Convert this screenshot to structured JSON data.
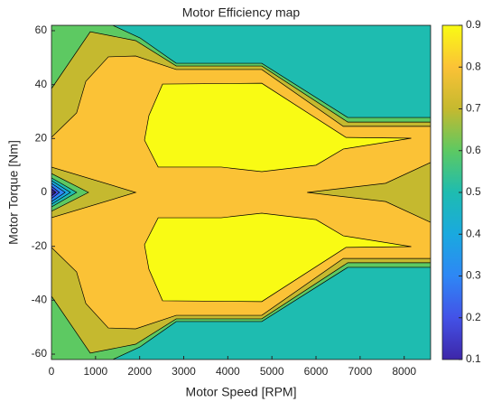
{
  "chart_data": {
    "type": "contourf",
    "title": "Motor Efficiency map",
    "xlabel": "Motor Speed [RPM]",
    "ylabel": "Motor Torque [Nm]",
    "xlim": [
      0,
      8600
    ],
    "ylim": [
      -62,
      62
    ],
    "xticks": [
      0,
      1000,
      2000,
      3000,
      4000,
      5000,
      6000,
      7000,
      8000
    ],
    "yticks": [
      -60,
      -40,
      -20,
      0,
      20,
      40,
      60
    ],
    "levels": [
      0.1,
      0.2,
      0.3,
      0.4,
      0.5,
      0.6,
      0.7,
      0.8,
      0.9
    ],
    "colors": [
      "#3d26a8",
      "#4352e7",
      "#2e87f5",
      "#1aa9df",
      "#1ebcb0",
      "#5dc962",
      "#c5b92f",
      "#fbc236",
      "#f9fb14"
    ],
    "clim": [
      0.1,
      0.9
    ],
    "colorbar_ticks": [
      0.1,
      0.2,
      0.3,
      0.4,
      0.5,
      0.6,
      0.7,
      0.8,
      0.9
    ],
    "regions": [
      {
        "level": 0.5,
        "x": [
          0,
          8600,
          8600,
          0
        ],
        "y": [
          62,
          62,
          -62,
          -62
        ]
      },
      {
        "level": 0.6,
        "x": [
          0,
          1390,
          2010,
          2830,
          4770,
          6720,
          8600,
          8600,
          6720,
          4770,
          2830,
          2010,
          1390,
          0
        ],
        "y": [
          62,
          62,
          57.3,
          47.9,
          47.9,
          27.8,
          27.8,
          -27.8,
          -27.8,
          -47.9,
          -47.9,
          -57.3,
          -62,
          -62
        ]
      },
      {
        "level": 0.7,
        "x": [
          0,
          880,
          1910,
          2830,
          4770,
          6720,
          8600,
          8600,
          6720,
          4770,
          2830,
          1910,
          880,
          0
        ],
        "y": [
          38.5,
          59.6,
          56.3,
          46.9,
          46.9,
          26.1,
          26.1,
          -26.1,
          -26.1,
          -46.9,
          -46.9,
          -56.3,
          -59.6,
          -38.5
        ]
      },
      {
        "level": 0.8,
        "x": [
          0,
          570,
          780,
          1290,
          1910,
          2830,
          4770,
          6620,
          8600,
          8600,
          6620,
          4770,
          2830,
          1910,
          1290,
          780,
          570,
          0
        ],
        "y": [
          20.4,
          29.5,
          41.2,
          50.3,
          50.6,
          45.6,
          45.6,
          24.5,
          24.5,
          -24.5,
          -24.5,
          -45.6,
          -45.6,
          -50.6,
          -50.3,
          -41.2,
          -29.5,
          -20.4
        ]
      },
      {
        "level": 0.9,
        "x": [
          2520,
          4770,
          6680,
          8160,
          6620,
          6000,
          4770,
          3850,
          2420,
          2110,
          2210
        ],
        "y": [
          40.2,
          40.5,
          20.4,
          20.1,
          16.1,
          10.1,
          7.7,
          9.4,
          9.4,
          19.4,
          28.5
        ]
      },
      {
        "level": 0.9,
        "x": [
          2520,
          4770,
          6680,
          8160,
          6620,
          6000,
          4770,
          3850,
          2420,
          2110,
          2210
        ],
        "y": [
          -40.2,
          -40.5,
          -20.4,
          -20.1,
          -16.1,
          -10.1,
          -7.7,
          -9.4,
          -9.4,
          -19.4,
          -28.5
        ]
      },
      {
        "level": 0.7,
        "x": [
          8600,
          7580,
          5800,
          7580,
          8600
        ],
        "y": [
          11.1,
          3.4,
          0,
          -3.4,
          -11.1
        ]
      },
      {
        "level": 0.7,
        "x": [
          0,
          1910,
          0
        ],
        "y": [
          9.4,
          0,
          -9.4
        ]
      },
      {
        "level": 0.6,
        "x": [
          0,
          840,
          0
        ],
        "y": [
          7.0,
          0,
          -7.0
        ]
      },
      {
        "level": 0.5,
        "x": [
          0,
          570,
          0
        ],
        "y": [
          5.4,
          0,
          -5.4
        ]
      },
      {
        "level": 0.4,
        "x": [
          0,
          430,
          0
        ],
        "y": [
          4.4,
          0,
          -4.4
        ]
      },
      {
        "level": 0.3,
        "x": [
          0,
          310,
          0
        ],
        "y": [
          3.4,
          0,
          -3.4
        ]
      },
      {
        "level": 0.2,
        "x": [
          0,
          180,
          0
        ],
        "y": [
          2.3,
          0,
          -2.3
        ]
      },
      {
        "level": 0.1,
        "x": [
          0,
          100,
          0
        ],
        "y": [
          1.3,
          0,
          -1.3
        ]
      }
    ]
  }
}
